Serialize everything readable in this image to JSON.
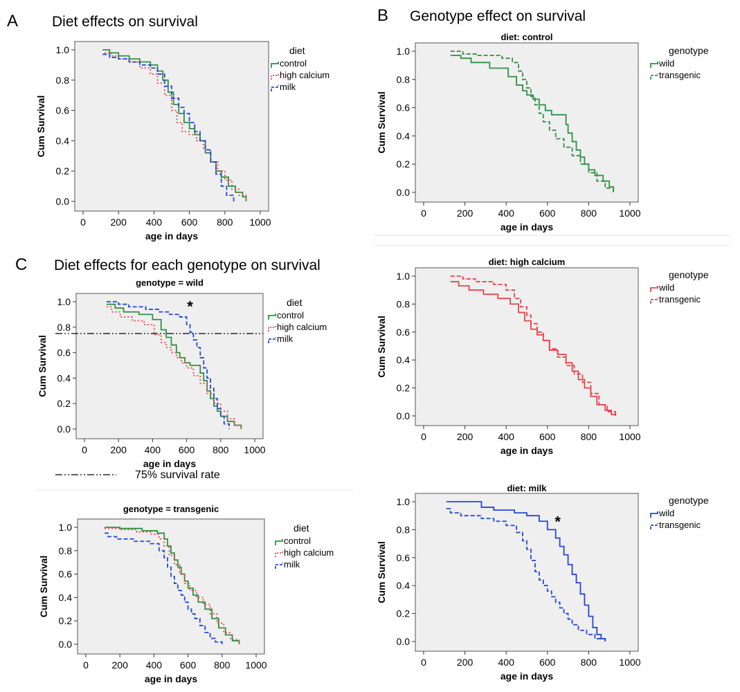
{
  "figure": {
    "colors": {
      "control": "#2e9142",
      "high_calcium": "#e8424a",
      "milk": "#2347d6",
      "plot_bg": "#efefef"
    },
    "panel_letters": [
      "A",
      "B",
      "C"
    ],
    "panel_titles": {
      "A": "Diet effects on survival",
      "B": "Genotype effect on survival",
      "C": "Diet effects for each genotype on survival"
    },
    "reference_line_note": "75% survival rate",
    "significance_mark": "*"
  },
  "chart_data": [
    {
      "id": "A",
      "type": "line",
      "step": true,
      "title": "",
      "xlabel": "age in days",
      "ylabel": "Cum Survival",
      "xlim": [
        0,
        1000
      ],
      "ylim": [
        0,
        1.0
      ],
      "xticks": [
        "0",
        "200",
        "400",
        "600",
        "800",
        "1000"
      ],
      "yticks": [
        "0.0",
        "0.2",
        "0.4",
        "0.6",
        "0.8",
        "1.0"
      ],
      "legend": {
        "title": "diet",
        "position": "top-right"
      },
      "series": [
        {
          "name": "control",
          "color": "#2e9142",
          "dash": "solid",
          "x": [
            110,
            150,
            200,
            260,
            320,
            380,
            420,
            450,
            480,
            510,
            540,
            570,
            600,
            630,
            660,
            690,
            720,
            750,
            780,
            820,
            860,
            900,
            920
          ],
          "y": [
            1.0,
            0.98,
            0.96,
            0.94,
            0.92,
            0.9,
            0.86,
            0.8,
            0.72,
            0.64,
            0.58,
            0.52,
            0.48,
            0.44,
            0.4,
            0.32,
            0.26,
            0.2,
            0.16,
            0.1,
            0.06,
            0.03,
            0.0
          ]
        },
        {
          "name": "high calcium",
          "color": "#e8424a",
          "dash": "dotted",
          "x": [
            120,
            160,
            200,
            260,
            320,
            380,
            420,
            460,
            500,
            530,
            560,
            600,
            640,
            680,
            720,
            760,
            800,
            840,
            880,
            920
          ],
          "y": [
            0.98,
            0.96,
            0.94,
            0.92,
            0.88,
            0.84,
            0.78,
            0.7,
            0.6,
            0.52,
            0.46,
            0.44,
            0.4,
            0.34,
            0.26,
            0.2,
            0.14,
            0.08,
            0.04,
            0.0
          ]
        },
        {
          "name": "milk",
          "color": "#2347d6",
          "dash": "dashed",
          "x": [
            110,
            150,
            200,
            260,
            320,
            380,
            420,
            460,
            500,
            540,
            570,
            600,
            630,
            660,
            690,
            720,
            750,
            780,
            810,
            850
          ],
          "y": [
            0.97,
            0.95,
            0.94,
            0.92,
            0.9,
            0.88,
            0.84,
            0.76,
            0.68,
            0.62,
            0.58,
            0.52,
            0.46,
            0.4,
            0.34,
            0.26,
            0.18,
            0.1,
            0.04,
            0.0
          ]
        }
      ]
    },
    {
      "id": "B1",
      "type": "line",
      "step": true,
      "title": "diet: control",
      "xlabel": "age in days",
      "ylabel": "Cum Survival",
      "xlim": [
        0,
        1000
      ],
      "ylim": [
        0,
        1.0
      ],
      "xticks": [
        "0",
        "200",
        "400",
        "600",
        "800",
        "1000"
      ],
      "yticks": [
        "0.0",
        "0.2",
        "0.4",
        "0.6",
        "0.8",
        "1.0"
      ],
      "legend": {
        "title": "genotype",
        "position": "top-right"
      },
      "series": [
        {
          "name": "wild",
          "color": "#2e9142",
          "dash": "solid",
          "x": [
            130,
            180,
            230,
            320,
            410,
            450,
            480,
            500,
            530,
            560,
            590,
            620,
            690,
            700,
            720,
            740,
            760,
            780,
            800,
            830,
            870,
            900,
            920
          ],
          "y": [
            0.97,
            0.95,
            0.92,
            0.88,
            0.82,
            0.76,
            0.72,
            0.69,
            0.66,
            0.62,
            0.58,
            0.55,
            0.48,
            0.42,
            0.36,
            0.3,
            0.25,
            0.2,
            0.16,
            0.12,
            0.08,
            0.04,
            0.0
          ]
        },
        {
          "name": "transgenic",
          "color": "#2e9142",
          "dash": "dashed",
          "x": [
            130,
            190,
            260,
            380,
            430,
            460,
            480,
            500,
            520,
            540,
            560,
            580,
            610,
            640,
            680,
            720,
            760,
            800,
            840,
            880,
            920
          ],
          "y": [
            1.0,
            0.98,
            0.97,
            0.95,
            0.92,
            0.86,
            0.8,
            0.74,
            0.68,
            0.62,
            0.56,
            0.5,
            0.44,
            0.38,
            0.32,
            0.26,
            0.2,
            0.14,
            0.08,
            0.03,
            0.0
          ]
        }
      ]
    },
    {
      "id": "B2",
      "type": "line",
      "step": true,
      "title": "diet: high calcium",
      "xlabel": "age in days",
      "ylabel": "Cum Survival",
      "xlim": [
        0,
        1000
      ],
      "ylim": [
        0,
        1.0
      ],
      "xticks": [
        "0",
        "200",
        "400",
        "600",
        "800",
        "1000"
      ],
      "yticks": [
        "0.0",
        "0.2",
        "0.4",
        "0.6",
        "0.8",
        "1.0"
      ],
      "legend": {
        "title": "genotype",
        "position": "top-right"
      },
      "series": [
        {
          "name": "wild",
          "color": "#e8424a",
          "dash": "solid",
          "x": [
            130,
            170,
            220,
            290,
            360,
            420,
            460,
            490,
            520,
            550,
            580,
            610,
            650,
            690,
            720,
            750,
            780,
            810,
            840,
            880,
            910,
            930
          ],
          "y": [
            0.96,
            0.93,
            0.9,
            0.87,
            0.84,
            0.8,
            0.74,
            0.68,
            0.62,
            0.58,
            0.54,
            0.47,
            0.44,
            0.38,
            0.32,
            0.26,
            0.2,
            0.14,
            0.08,
            0.04,
            0.01,
            0.0
          ]
        },
        {
          "name": "transgenic",
          "color": "#e8424a",
          "dash": "dashed",
          "x": [
            130,
            190,
            250,
            340,
            400,
            440,
            470,
            500,
            520,
            550,
            580,
            610,
            650,
            690,
            730,
            770,
            810,
            850,
            890,
            930
          ],
          "y": [
            1.0,
            0.98,
            0.96,
            0.94,
            0.9,
            0.84,
            0.78,
            0.72,
            0.66,
            0.6,
            0.54,
            0.48,
            0.42,
            0.36,
            0.3,
            0.24,
            0.16,
            0.08,
            0.03,
            0.0
          ]
        }
      ]
    },
    {
      "id": "B3",
      "type": "line",
      "step": true,
      "title": "diet: milk",
      "xlabel": "age in days",
      "ylabel": "Cum Survival",
      "xlim": [
        0,
        1000
      ],
      "ylim": [
        0,
        1.0
      ],
      "xticks": [
        "0",
        "200",
        "400",
        "600",
        "800",
        "1000"
      ],
      "yticks": [
        "0.0",
        "0.2",
        "0.4",
        "0.6",
        "0.8",
        "1.0"
      ],
      "legend": {
        "title": "genotype",
        "position": "top-right"
      },
      "annotations": [
        {
          "text": "*",
          "x": 650,
          "y": 0.82
        }
      ],
      "series": [
        {
          "name": "wild",
          "color": "#2347d6",
          "dash": "solid",
          "x": [
            110,
            280,
            340,
            440,
            500,
            560,
            600,
            640,
            660,
            680,
            700,
            720,
            740,
            760,
            780,
            800,
            820,
            840,
            860,
            880
          ],
          "y": [
            1.0,
            0.96,
            0.94,
            0.92,
            0.9,
            0.86,
            0.8,
            0.74,
            0.68,
            0.62,
            0.55,
            0.48,
            0.42,
            0.34,
            0.26,
            0.18,
            0.1,
            0.05,
            0.02,
            0.0
          ]
        },
        {
          "name": "transgenic",
          "color": "#2347d6",
          "dash": "dashed",
          "x": [
            110,
            130,
            180,
            280,
            340,
            400,
            450,
            480,
            500,
            520,
            540,
            560,
            580,
            600,
            620,
            640,
            660,
            680,
            700,
            720,
            750,
            790,
            830,
            880
          ],
          "y": [
            0.95,
            0.92,
            0.9,
            0.88,
            0.86,
            0.83,
            0.78,
            0.72,
            0.66,
            0.58,
            0.5,
            0.44,
            0.4,
            0.36,
            0.32,
            0.28,
            0.24,
            0.2,
            0.16,
            0.12,
            0.08,
            0.05,
            0.02,
            0.0
          ]
        }
      ]
    },
    {
      "id": "C1",
      "type": "line",
      "step": true,
      "title": "genotype = wild",
      "xlabel": "age in days",
      "ylabel": "Cum Survival",
      "xlim": [
        0,
        1000
      ],
      "ylim": [
        0,
        1.0
      ],
      "xticks": [
        "0",
        "200",
        "400",
        "600",
        "800",
        "1000"
      ],
      "yticks": [
        "0.0",
        "0.2",
        "0.4",
        "0.6",
        "0.8",
        "1.0"
      ],
      "legend": {
        "title": "diet",
        "position": "top-right"
      },
      "reference_line": {
        "y": 0.75,
        "style": "dash-dot"
      },
      "annotations": [
        {
          "text": "*",
          "x": 620,
          "y": 0.92
        }
      ],
      "series": [
        {
          "name": "control",
          "color": "#2e9142",
          "dash": "solid",
          "x": [
            130,
            180,
            230,
            320,
            400,
            450,
            480,
            510,
            540,
            560,
            590,
            620,
            680,
            700,
            720,
            740,
            760,
            780,
            800,
            840,
            880,
            920
          ],
          "y": [
            0.98,
            0.95,
            0.92,
            0.9,
            0.86,
            0.78,
            0.72,
            0.66,
            0.6,
            0.56,
            0.52,
            0.5,
            0.44,
            0.38,
            0.3,
            0.24,
            0.18,
            0.14,
            0.1,
            0.06,
            0.03,
            0.0
          ]
        },
        {
          "name": "high calcium",
          "color": "#e8424a",
          "dash": "dotted",
          "x": [
            130,
            160,
            210,
            280,
            350,
            410,
            450,
            480,
            510,
            540,
            570,
            600,
            640,
            680,
            720,
            760,
            800,
            840,
            880,
            920
          ],
          "y": [
            0.96,
            0.92,
            0.88,
            0.85,
            0.82,
            0.74,
            0.68,
            0.64,
            0.6,
            0.56,
            0.52,
            0.48,
            0.42,
            0.36,
            0.28,
            0.2,
            0.14,
            0.08,
            0.03,
            0.0
          ]
        },
        {
          "name": "milk",
          "color": "#2347d6",
          "dash": "dashed",
          "x": [
            130,
            200,
            260,
            360,
            440,
            500,
            560,
            600,
            620,
            640,
            660,
            680,
            700,
            720,
            740,
            760,
            780,
            800,
            820,
            850
          ],
          "y": [
            1.0,
            0.98,
            0.96,
            0.94,
            0.92,
            0.9,
            0.88,
            0.82,
            0.76,
            0.7,
            0.64,
            0.56,
            0.48,
            0.4,
            0.32,
            0.24,
            0.16,
            0.1,
            0.04,
            0.0
          ]
        }
      ]
    },
    {
      "id": "C2",
      "type": "line",
      "step": true,
      "title": "genotype = transgenic",
      "xlabel": "age in days",
      "ylabel": "Cum Survival",
      "xlim": [
        0,
        1000
      ],
      "ylim": [
        0,
        1.0
      ],
      "xticks": [
        "0",
        "200",
        "400",
        "600",
        "800",
        "1000"
      ],
      "yticks": [
        "0.0",
        "0.2",
        "0.4",
        "0.6",
        "0.8",
        "1.0"
      ],
      "legend": {
        "title": "diet",
        "position": "top-right"
      },
      "series": [
        {
          "name": "control",
          "color": "#2e9142",
          "dash": "solid",
          "x": [
            110,
            200,
            330,
            420,
            460,
            480,
            500,
            520,
            540,
            560,
            580,
            600,
            630,
            660,
            700,
            740,
            780,
            820,
            860,
            900
          ],
          "y": [
            1.0,
            0.99,
            0.97,
            0.95,
            0.9,
            0.84,
            0.78,
            0.72,
            0.66,
            0.6,
            0.54,
            0.48,
            0.42,
            0.36,
            0.3,
            0.22,
            0.14,
            0.08,
            0.03,
            0.0
          ]
        },
        {
          "name": "high calcium",
          "color": "#e8424a",
          "dash": "dotted",
          "x": [
            110,
            200,
            300,
            380,
            430,
            460,
            490,
            520,
            550,
            580,
            610,
            650,
            690,
            730,
            770,
            810,
            850,
            900
          ],
          "y": [
            0.99,
            0.98,
            0.96,
            0.94,
            0.9,
            0.84,
            0.76,
            0.68,
            0.6,
            0.52,
            0.46,
            0.4,
            0.34,
            0.26,
            0.18,
            0.1,
            0.04,
            0.0
          ]
        },
        {
          "name": "milk",
          "color": "#2347d6",
          "dash": "dashed",
          "x": [
            110,
            130,
            180,
            280,
            380,
            430,
            460,
            480,
            500,
            520,
            540,
            560,
            580,
            600,
            620,
            640,
            670,
            700,
            730,
            760,
            800
          ],
          "y": [
            0.95,
            0.92,
            0.9,
            0.88,
            0.86,
            0.8,
            0.74,
            0.66,
            0.58,
            0.52,
            0.46,
            0.42,
            0.36,
            0.3,
            0.26,
            0.22,
            0.16,
            0.1,
            0.05,
            0.02,
            0.0
          ]
        }
      ]
    }
  ]
}
